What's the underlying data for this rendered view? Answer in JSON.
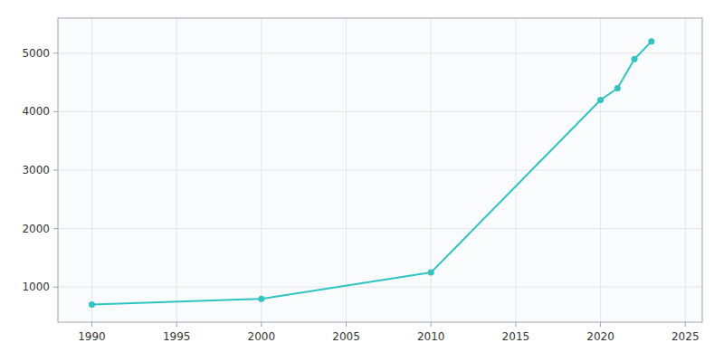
{
  "chart_data": {
    "type": "line",
    "x": [
      1990,
      2000,
      2010,
      2020,
      2021,
      2022,
      2023
    ],
    "values": [
      700,
      800,
      1250,
      4200,
      4400,
      4900,
      5200
    ],
    "color": "#2ec4c4",
    "marker": "circle",
    "xlim": [
      1988,
      2026
    ],
    "ylim": [
      400,
      5600
    ],
    "xticks": [
      1990,
      1995,
      2000,
      2005,
      2010,
      2015,
      2020,
      2025
    ],
    "yticks": [
      1000,
      2000,
      3000,
      4000,
      5000
    ],
    "grid": true
  }
}
